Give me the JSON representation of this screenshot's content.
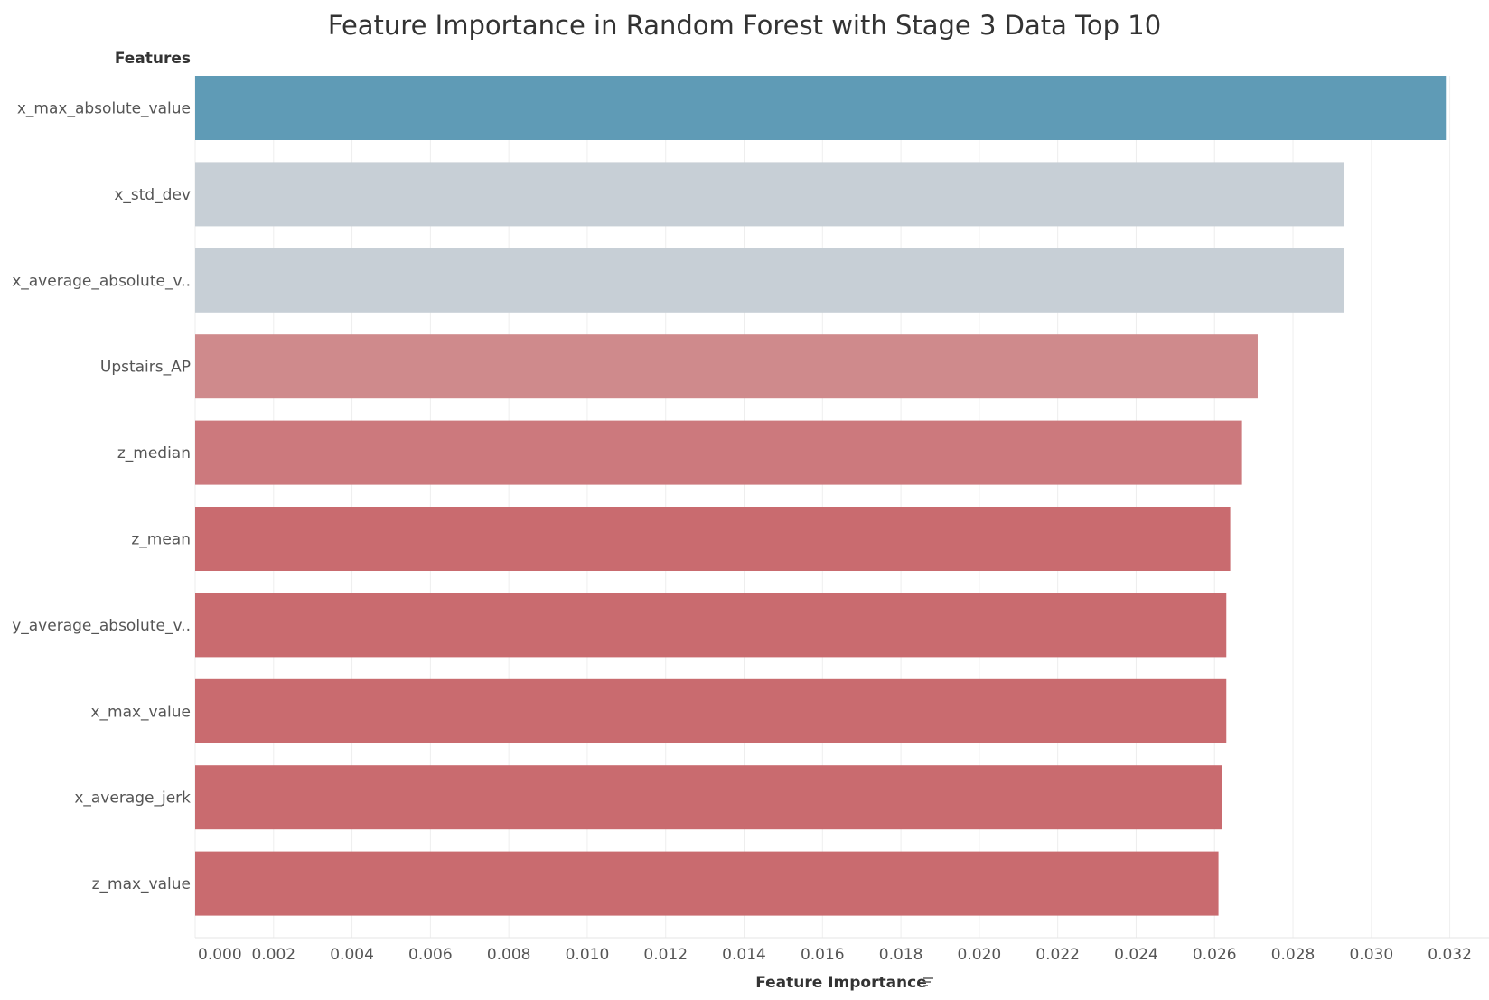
{
  "chart_data": {
    "type": "bar",
    "orientation": "horizontal",
    "title": "Feature Importance in Random Forest with Stage 3 Data Top 10",
    "ylabel": "Features",
    "xlabel": "Feature Importance",
    "categories": [
      "x_max_absolute_value",
      "x_std_dev",
      "x_average_absolute_v..",
      "Upstairs_AP",
      "z_median",
      "z_mean",
      "y_average_absolute_v..",
      "x_max_value",
      "x_average_jerk",
      "z_max_value"
    ],
    "values": [
      0.0319,
      0.0293,
      0.0293,
      0.0271,
      0.0267,
      0.0264,
      0.0263,
      0.0263,
      0.0262,
      0.0261
    ],
    "colors": [
      "#5f9bb6",
      "#c7cfd6",
      "#c7cfd6",
      "#cf8a8c",
      "#cc797d",
      "#c96b6f",
      "#c96b6f",
      "#c96b6f",
      "#c96b6f",
      "#c96b6f"
    ],
    "xlim": [
      0,
      0.033
    ],
    "xticks": [
      "0.000",
      "0.002",
      "0.004",
      "0.006",
      "0.008",
      "0.010",
      "0.012",
      "0.014",
      "0.016",
      "0.018",
      "0.020",
      "0.022",
      "0.024",
      "0.026",
      "0.028",
      "0.030",
      "0.032"
    ],
    "grid": true,
    "sort_icon": "sort-descending-icon"
  }
}
